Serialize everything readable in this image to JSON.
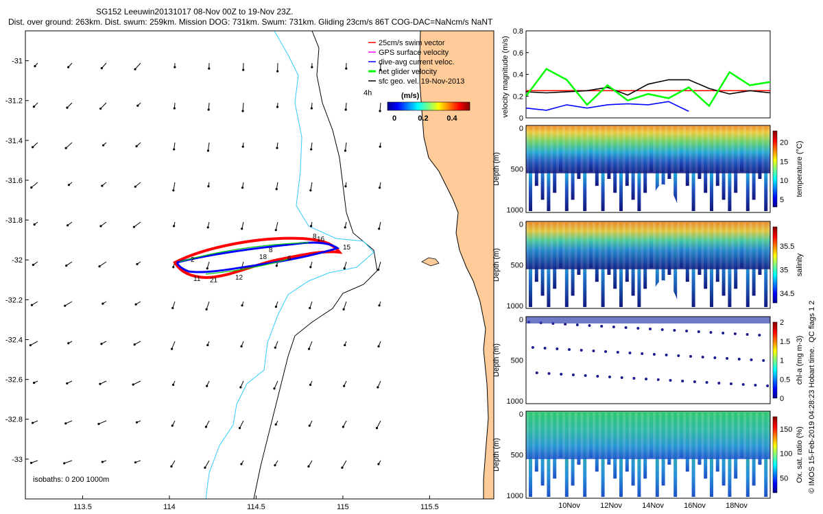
{
  "header": {
    "line1": "SG152 Leeuwin20131017 08-Nov 00Z to 19-Nov 23Z.",
    "line2": "Dist. over ground: 263km. Dist. swum: 259km. Mission DOG: 731km. Swum: 731km. Gliding 23cm/s 86T COG-DAC=NaNcm/s NaNT"
  },
  "map": {
    "lat_ticks": [
      "-31",
      "-31.2",
      "-31.4",
      "-31.6",
      "-31.8",
      "-32",
      "-32.2",
      "-32.4",
      "-32.6",
      "-32.8",
      "-33"
    ],
    "lon_ticks": [
      "113.5",
      "114",
      "114.5",
      "115",
      "115.5"
    ],
    "lon_range": [
      113.17,
      115.87
    ],
    "lat_range": [
      -33.2,
      -30.85
    ],
    "legend": [
      {
        "label": "25cm/s swim vector",
        "color": "#ff0000"
      },
      {
        "label": "GPS surface velocity",
        "color": "#ff00ff"
      },
      {
        "label": "dive-avg current veloc.",
        "color": "#0000ff"
      },
      {
        "label": "net glider velocity",
        "color": "#00ff00"
      },
      {
        "label": "sfc geo. vel. 19-Nov-2013",
        "color": "#000000"
      }
    ],
    "legend_note": "4h",
    "colorbar_title": "(m/s)",
    "colorbar_ticks": [
      "0",
      "0.2",
      "0.4"
    ],
    "isobath_note": "isobaths: 0   200  1000m",
    "track_labels": [
      "11",
      "12",
      "15",
      "16",
      "18",
      "21",
      "6",
      "8",
      "2",
      "8"
    ],
    "colors": {
      "land": "#ffcc99",
      "isobath200": "#33ccff",
      "coast": "#000000"
    }
  },
  "chart_data": [
    {
      "type": "line",
      "ylabel": "velocity magnitude (m/s)",
      "ylim": [
        0,
        0.8
      ],
      "yticks": [
        "0",
        "0.2",
        "0.4",
        "0.6",
        "0.8"
      ],
      "x": [
        8,
        9,
        10,
        11,
        12,
        13,
        14,
        15,
        16,
        17,
        18,
        19,
        20
      ],
      "series": [
        {
          "color": "#ff0000",
          "values": [
            0.25,
            0.25,
            0.25,
            0.25,
            0.25,
            0.25,
            0.25,
            0.25,
            0.25,
            0.25,
            0.25,
            0.25,
            0.25
          ]
        },
        {
          "color": "#000000",
          "values": [
            0.24,
            0.23,
            0.24,
            0.25,
            0.28,
            0.21,
            0.31,
            0.35,
            0.35,
            0.27,
            0.22,
            0.25,
            0.23
          ]
        },
        {
          "color": "#0000ff",
          "values": [
            0.09,
            0.07,
            0.12,
            0.09,
            0.12,
            0.13,
            0.12,
            0.15,
            0.06,
            null,
            null,
            null,
            null
          ]
        },
        {
          "color": "#00ff00",
          "values": [
            0.2,
            0.45,
            0.35,
            0.12,
            0.3,
            0.16,
            0.22,
            0.18,
            0.28,
            0.11,
            0.42,
            0.3,
            0.33
          ]
        }
      ]
    },
    {
      "type": "heatmap",
      "ylabel": "Depth (m)",
      "cbar_label": "temperature (°C)",
      "yticks": [
        "0",
        "500",
        "1000"
      ],
      "cbar_ticks": [
        "5",
        "10",
        "15",
        "20"
      ],
      "cbar_range": [
        3,
        23
      ]
    },
    {
      "type": "heatmap",
      "ylabel": "Depth (m)",
      "cbar_label": "salinity",
      "yticks": [
        "0",
        "500",
        "1000"
      ],
      "cbar_ticks": [
        "34.5",
        "35",
        "35.5"
      ],
      "cbar_range": [
        34.3,
        35.9
      ]
    },
    {
      "type": "scatter",
      "ylabel": "Depth (m)",
      "cbar_label": "chl-a (mg m-3)",
      "yticks": [
        "0",
        "500",
        "1000"
      ],
      "cbar_ticks": [
        "0",
        "0.5",
        "1",
        "1.5",
        "2"
      ],
      "cbar_range": [
        0,
        2
      ]
    },
    {
      "type": "heatmap",
      "ylabel": "Depth (m)",
      "cbar_label": "Ox. sat. ratio (%)",
      "yticks": [
        "0",
        "500",
        "1000"
      ],
      "cbar_ticks": [
        "50",
        "100",
        "150"
      ],
      "cbar_range": [
        20,
        175
      ],
      "xticks": [
        "10Nov",
        "12Nov",
        "14Nov",
        "16Nov",
        "18Nov"
      ]
    }
  ],
  "side_note": "QC flags 1  2",
  "credit": "© IMOS 15-Feb-2019 04:28:23 Hobart time."
}
